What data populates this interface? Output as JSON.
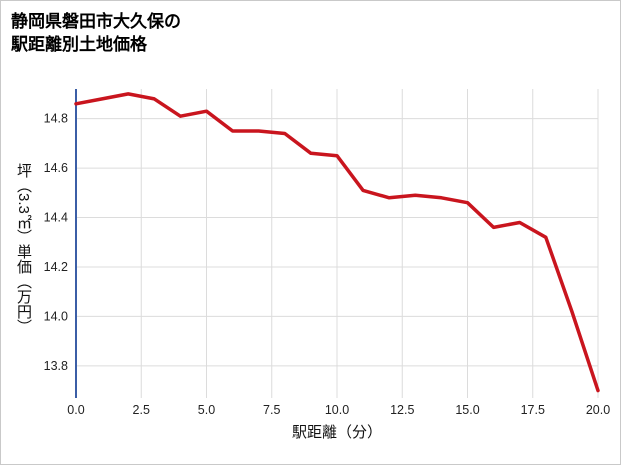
{
  "title": {
    "line1": "静岡県磐田市大久保の",
    "line2": "駅距離別土地価格"
  },
  "chart_data": {
    "type": "line",
    "title": "静岡県磐田市大久保の駅距離別土地価格",
    "xlabel": "駅距離（分）",
    "ylabel": "坪（3.3㎡）単価（万円）",
    "x": [
      0,
      1,
      2,
      3,
      4,
      5,
      6,
      7,
      8,
      9,
      10,
      11,
      12,
      13,
      14,
      15,
      16,
      17,
      18,
      19,
      20
    ],
    "y": [
      14.86,
      14.88,
      14.9,
      14.88,
      14.81,
      14.83,
      14.75,
      14.75,
      14.74,
      14.66,
      14.65,
      14.51,
      14.48,
      14.49,
      14.48,
      14.46,
      14.36,
      14.38,
      14.32,
      14.02,
      13.7
    ],
    "xticks": [
      0.0,
      2.5,
      5.0,
      7.5,
      10.0,
      12.5,
      15.0,
      17.5,
      20.0
    ],
    "yticks": [
      13.8,
      14.0,
      14.2,
      14.4,
      14.6,
      14.8
    ],
    "xlim": [
      0,
      20
    ],
    "ylim": [
      13.67,
      14.92
    ],
    "grid": true,
    "legend_position": "none",
    "line_color": "#c9151e",
    "axis_color": "#3b5ea6",
    "grid_color": "#dcdcdc"
  }
}
